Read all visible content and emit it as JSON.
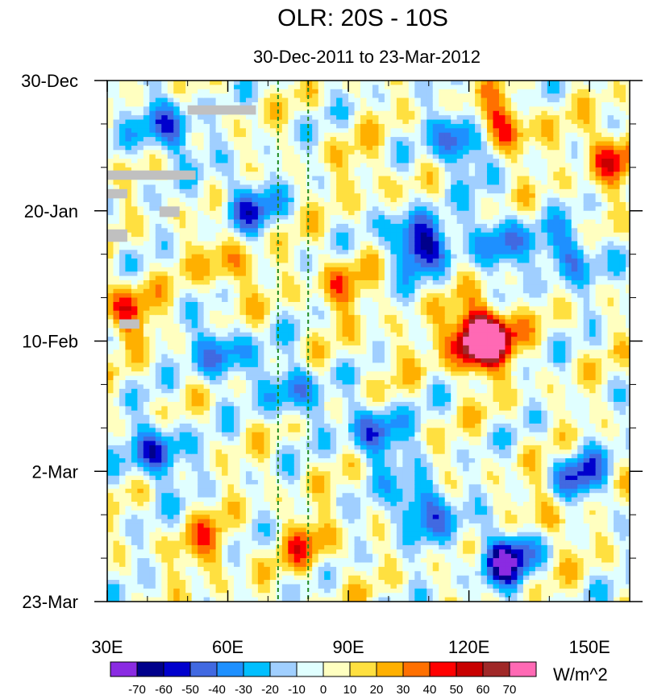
{
  "chart_data": {
    "type": "heatmap",
    "title": "OLR: 20S - 10S",
    "subtitle": "30-Dec-2011 to 23-Mar-2012",
    "x_axis": {
      "range": [
        30,
        160
      ],
      "ticks": [
        30,
        60,
        90,
        120,
        150
      ],
      "tick_labels": [
        "30E",
        "60E",
        "90E",
        "120E",
        "150E"
      ]
    },
    "y_axis": {
      "range_days": [
        0,
        84
      ],
      "ticks_days": [
        0,
        21,
        42,
        63,
        84
      ],
      "tick_labels": [
        "30-Dec",
        "20-Jan",
        "10-Feb",
        "2-Mar",
        "23-Mar"
      ],
      "minor_every_days": 7
    },
    "reference_lines_lon": [
      72.5,
      80
    ],
    "colorbar": {
      "levels": [
        -70,
        -60,
        -50,
        -40,
        -30,
        -20,
        -10,
        0,
        10,
        20,
        30,
        40,
        50,
        60,
        70
      ],
      "level_labels": [
        "-70",
        "-60",
        "-50",
        "-40",
        "-30",
        "-20",
        "-10",
        "0",
        "10",
        "20",
        "30",
        "40",
        "50",
        "60",
        "70"
      ],
      "colors": [
        "#8a2be2",
        "#00008b",
        "#0000cd",
        "#4169e1",
        "#1e90ff",
        "#00bfff",
        "#a0cfff",
        "#e0ffff",
        "#ffffc0",
        "#ffe040",
        "#ffb000",
        "#ff7000",
        "#ff0000",
        "#c80000",
        "#a02828",
        "#ff69b4"
      ],
      "units": "W/m^2"
    },
    "features": [
      {
        "lon": 122,
        "day": 42,
        "value": 75
      },
      {
        "lon": 125,
        "day": 41,
        "value": 55
      },
      {
        "lon": 128,
        "day": 7,
        "value": 50
      },
      {
        "lon": 155,
        "day": 12,
        "value": 45
      },
      {
        "lon": 35,
        "day": 37,
        "value": 40
      },
      {
        "lon": 60,
        "day": 30,
        "value": 30
      },
      {
        "lon": 55,
        "day": 75,
        "value": 28
      },
      {
        "lon": 88,
        "day": 33,
        "value": 30
      },
      {
        "lon": 140,
        "day": 70,
        "value": 20
      },
      {
        "lon": 107,
        "day": 26,
        "value": -70
      },
      {
        "lon": 118,
        "day": 10,
        "value": -55
      },
      {
        "lon": 127,
        "day": 26,
        "value": -45
      },
      {
        "lon": 145,
        "day": 28,
        "value": -45
      },
      {
        "lon": 129,
        "day": 77,
        "value": -70
      },
      {
        "lon": 108,
        "day": 69,
        "value": -55
      },
      {
        "lon": 42,
        "day": 60,
        "value": -55
      },
      {
        "lon": 58,
        "day": 44,
        "value": -45
      },
      {
        "lon": 76,
        "day": 50,
        "value": -40
      },
      {
        "lon": 97,
        "day": 57,
        "value": -50
      },
      {
        "lon": 45,
        "day": 8,
        "value": -50
      },
      {
        "lon": 65,
        "day": 20,
        "value": -45
      },
      {
        "lon": 148,
        "day": 64,
        "value": -45
      },
      {
        "lon": 80,
        "day": 75,
        "value": 30
      },
      {
        "lon": 95,
        "day": 15,
        "value": 15
      },
      {
        "lon": 100,
        "day": 44,
        "value": 10
      }
    ],
    "missing_data_color": "#c0c0c0"
  }
}
